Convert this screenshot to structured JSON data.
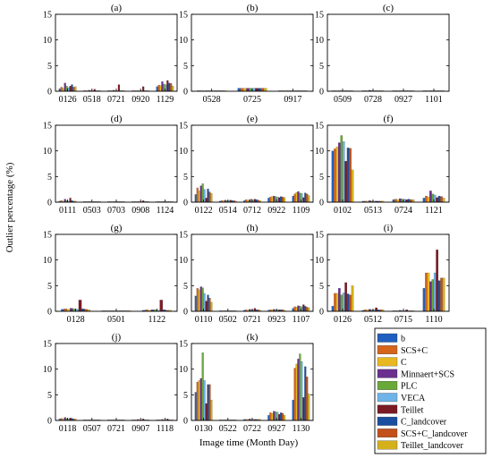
{
  "figure": {
    "ylabel": "Outlier percentage (%)",
    "xlabel": "Image time (Month Day)"
  },
  "series_colors": {
    "b": "#1f5fbf",
    "SCS+C": "#d4651a",
    "C": "#e8b820",
    "Minnaert+SCS": "#6a2f8f",
    "PLC": "#6aa83a",
    "VECA": "#6fb3e8",
    "Teillet": "#7a1a24",
    "C_landcover": "#1a4f9f",
    "SCS+C_landcover": "#c2501a",
    "Teillet_landcover": "#d4b01a"
  },
  "legend": [
    "b",
    "SCS+C",
    "C",
    "Minnaert+SCS",
    "PLC",
    "VECA",
    "Teillet",
    "C_landcover",
    "SCS+C_landcover",
    "Teillet_landcover"
  ],
  "chart_data": [
    {
      "type": "bar",
      "title": "(a)",
      "ylim": [
        0,
        15
      ],
      "yticks": [
        0,
        5,
        10,
        15
      ],
      "categories": [
        "0126",
        "0518",
        "0721",
        "0920",
        "1129"
      ],
      "values": [
        [
          0.5,
          0.8,
          0.6,
          1.6,
          1.0,
          0.7,
          1.0,
          1.3,
          0.8,
          0.9
        ],
        [
          0.05,
          0.1,
          0.05,
          0.2,
          0.1,
          0.05,
          0.4,
          0.1,
          0.1,
          0.05
        ],
        [
          0.1,
          0.1,
          0.1,
          0.2,
          0.1,
          0.1,
          1.3,
          0.1,
          0.1,
          0.1
        ],
        [
          0.05,
          0.05,
          0.05,
          0.1,
          0.05,
          0.05,
          0.9,
          0.05,
          0.05,
          0.05
        ],
        [
          0.9,
          1.2,
          1.1,
          1.9,
          1.4,
          1.3,
          2.1,
          1.6,
          1.5,
          1.0
        ]
      ]
    },
    {
      "type": "bar",
      "title": "(b)",
      "ylim": [
        0,
        15
      ],
      "yticks": [
        0,
        5,
        10,
        15
      ],
      "categories": [
        "0528",
        "0725",
        "0917"
      ],
      "values": [
        [
          0.1,
          0.1,
          0.1,
          0.1,
          0.1,
          0.1,
          0.1,
          0.1,
          0.1,
          0.1
        ],
        [
          0.6,
          0.6,
          0.6,
          0.6,
          0.6,
          0.6,
          0.6,
          0.6,
          0.6,
          0.6
        ],
        [
          0.1,
          0.1,
          0.1,
          0.1,
          0.1,
          0.1,
          0.1,
          0.1,
          0.1,
          0.1
        ]
      ]
    },
    {
      "type": "bar",
      "title": "(c)",
      "ylim": [
        0,
        15
      ],
      "yticks": [
        0,
        5,
        10,
        15
      ],
      "categories": [
        "0509",
        "0728",
        "0927",
        "1101"
      ],
      "values": [
        [
          0.05,
          0.05,
          0.05,
          0.05,
          0.05,
          0.05,
          0.05,
          0.05,
          0.05,
          0.05
        ],
        [
          0.1,
          0.1,
          0.1,
          0.2,
          0.1,
          0.1,
          0.1,
          0.1,
          0.1,
          0.1
        ],
        [
          0.05,
          0.05,
          0.05,
          0.05,
          0.05,
          0.05,
          0.05,
          0.05,
          0.05,
          0.05
        ],
        [
          0.05,
          0.05,
          0.05,
          0.05,
          0.05,
          0.05,
          0.05,
          0.05,
          0.05,
          0.05
        ]
      ]
    },
    {
      "type": "bar",
      "title": "(d)",
      "ylim": [
        0,
        15
      ],
      "yticks": [
        0,
        5,
        10,
        15
      ],
      "categories": [
        "0111",
        "0503",
        "0703",
        "0908",
        "1124"
      ],
      "values": [
        [
          0.2,
          0.3,
          0.2,
          0.6,
          0.3,
          0.2,
          0.8,
          0.3,
          0.2,
          0.2
        ],
        [
          0.05,
          0.05,
          0.05,
          0.1,
          0.05,
          0.05,
          0.1,
          0.05,
          0.05,
          0.05
        ],
        [
          0.1,
          0.1,
          0.1,
          0.1,
          0.1,
          0.1,
          0.1,
          0.1,
          0.1,
          0.1
        ],
        [
          0.05,
          0.05,
          0.05,
          0.1,
          0.05,
          0.05,
          0.3,
          0.05,
          0.05,
          0.05
        ],
        [
          0.05,
          0.05,
          0.05,
          0.05,
          0.05,
          0.05,
          0.05,
          0.05,
          0.05,
          0.05
        ]
      ]
    },
    {
      "type": "bar",
      "title": "(e)",
      "ylim": [
        0,
        15
      ],
      "yticks": [
        0,
        5,
        10,
        15
      ],
      "categories": [
        "0122",
        "0514",
        "0712",
        "0922",
        "1109"
      ],
      "values": [
        [
          1.5,
          2.8,
          2.2,
          3.2,
          3.6,
          2.5,
          0.8,
          2.6,
          2.0,
          1.7
        ],
        [
          0.2,
          0.3,
          0.3,
          0.4,
          0.3,
          0.3,
          0.4,
          0.3,
          0.3,
          0.2
        ],
        [
          0.3,
          0.5,
          0.4,
          0.5,
          0.6,
          0.4,
          0.6,
          0.5,
          0.4,
          0.3
        ],
        [
          0.8,
          1.0,
          1.1,
          1.2,
          1.1,
          1.0,
          0.9,
          1.1,
          1.0,
          0.9
        ],
        [
          1.2,
          1.6,
          1.9,
          2.1,
          1.8,
          1.7,
          0.9,
          1.8,
          1.6,
          1.3
        ]
      ]
    },
    {
      "type": "bar",
      "title": "(f)",
      "ylim": [
        0,
        15
      ],
      "yticks": [
        0,
        5,
        10,
        15
      ],
      "categories": [
        "0102",
        "0513",
        "0724",
        "1121"
      ],
      "values": [
        [
          10.0,
          10.4,
          10.8,
          11.6,
          13.0,
          11.8,
          8.0,
          10.6,
          10.5,
          6.3
        ],
        [
          0.2,
          0.2,
          0.2,
          0.3,
          0.2,
          0.2,
          0.2,
          0.2,
          0.2,
          0.2
        ],
        [
          0.5,
          0.6,
          0.5,
          0.7,
          0.6,
          0.6,
          0.5,
          0.6,
          0.5,
          0.5
        ],
        [
          0.8,
          1.2,
          1.0,
          2.2,
          1.6,
          1.4,
          0.9,
          1.2,
          1.1,
          0.8
        ]
      ]
    },
    {
      "type": "bar",
      "title": "(g)",
      "ylim": [
        0,
        15
      ],
      "yticks": [
        0,
        5,
        10,
        15
      ],
      "categories": [
        "0128",
        "0501",
        "1122"
      ],
      "values": [
        [
          0.4,
          0.5,
          0.4,
          0.6,
          0.5,
          0.4,
          2.2,
          0.5,
          0.4,
          0.3
        ],
        [
          0.05,
          0.05,
          0.05,
          0.05,
          0.05,
          0.05,
          0.05,
          0.05,
          0.05,
          0.05
        ],
        [
          0.2,
          0.3,
          0.2,
          0.3,
          0.3,
          0.2,
          2.2,
          0.3,
          0.2,
          0.2
        ]
      ]
    },
    {
      "type": "bar",
      "title": "(h)",
      "ylim": [
        0,
        15
      ],
      "yticks": [
        0,
        5,
        10,
        15
      ],
      "categories": [
        "0110",
        "0502",
        "0721",
        "0923",
        "1107"
      ],
      "values": [
        [
          3.0,
          4.5,
          4.2,
          4.8,
          4.6,
          3.5,
          2.0,
          3.2,
          2.6,
          1.8
        ],
        [
          0.1,
          0.1,
          0.1,
          0.1,
          0.1,
          0.1,
          0.1,
          0.1,
          0.1,
          0.1
        ],
        [
          0.2,
          0.3,
          0.2,
          0.4,
          0.3,
          0.3,
          0.6,
          0.3,
          0.3,
          0.2
        ],
        [
          0.2,
          0.3,
          0.3,
          0.4,
          0.3,
          0.3,
          0.3,
          0.3,
          0.3,
          0.2
        ],
        [
          0.6,
          0.9,
          0.8,
          1.1,
          1.0,
          0.9,
          1.3,
          1.0,
          0.8,
          0.7
        ]
      ]
    },
    {
      "type": "bar",
      "title": "(i)",
      "ylim": [
        0,
        15
      ],
      "yticks": [
        0,
        5,
        10,
        15
      ],
      "categories": [
        "0126",
        "0512",
        "0715",
        "1110"
      ],
      "values": [
        [
          1.0,
          3.5,
          3.5,
          4.5,
          3.2,
          3.6,
          5.6,
          3.4,
          3.2,
          5.0
        ],
        [
          0.2,
          0.3,
          0.3,
          0.4,
          0.3,
          0.3,
          0.7,
          0.3,
          0.3,
          0.3
        ],
        [
          0.1,
          0.1,
          0.1,
          0.2,
          0.1,
          0.1,
          0.3,
          0.1,
          0.1,
          0.1
        ],
        [
          4.5,
          7.5,
          7.5,
          5.8,
          6.2,
          7.5,
          12.0,
          6.0,
          6.5,
          6.5
        ]
      ]
    },
    {
      "type": "bar",
      "title": "(j)",
      "ylim": [
        0,
        15
      ],
      "yticks": [
        0,
        5,
        10,
        15
      ],
      "categories": [
        "0118",
        "0507",
        "0721",
        "0907",
        "1118"
      ],
      "values": [
        [
          0.3,
          0.4,
          0.3,
          0.6,
          0.4,
          0.3,
          0.5,
          0.4,
          0.3,
          0.3
        ],
        [
          0.05,
          0.05,
          0.05,
          0.05,
          0.05,
          0.05,
          0.05,
          0.05,
          0.05,
          0.05
        ],
        [
          0.05,
          0.05,
          0.05,
          0.05,
          0.05,
          0.05,
          0.05,
          0.05,
          0.05,
          0.05
        ],
        [
          0.1,
          0.1,
          0.1,
          0.2,
          0.1,
          0.1,
          0.3,
          0.1,
          0.1,
          0.1
        ],
        [
          0.1,
          0.1,
          0.1,
          0.2,
          0.1,
          0.1,
          0.3,
          0.1,
          0.1,
          0.1
        ]
      ]
    },
    {
      "type": "bar",
      "title": "(k)",
      "ylim": [
        0,
        15
      ],
      "yticks": [
        0,
        5,
        10,
        15
      ],
      "categories": [
        "0130",
        "0522",
        "0722",
        "0927",
        "1130"
      ],
      "values": [
        [
          5.5,
          7.5,
          7.8,
          8.2,
          13.2,
          7.8,
          3.3,
          7.0,
          7.0,
          4.0
        ],
        [
          0.1,
          0.1,
          0.1,
          0.1,
          0.1,
          0.1,
          0.1,
          0.1,
          0.1,
          0.1
        ],
        [
          0.2,
          0.2,
          0.2,
          0.3,
          0.2,
          0.2,
          0.2,
          0.2,
          0.2,
          0.2
        ],
        [
          1.0,
          1.5,
          1.4,
          1.8,
          1.7,
          1.6,
          1.2,
          1.5,
          1.4,
          1.0
        ],
        [
          4.0,
          10.2,
          11.0,
          12.0,
          13.0,
          11.5,
          4.5,
          10.5,
          8.5,
          5.2
        ]
      ]
    }
  ]
}
